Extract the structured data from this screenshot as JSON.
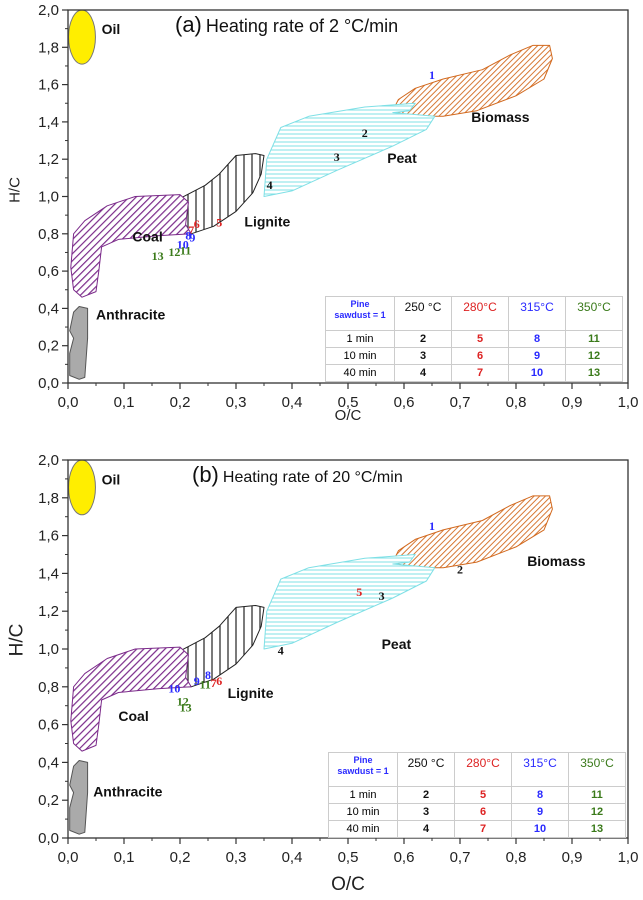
{
  "chart_data": [
    {
      "type": "scatter",
      "panel_label": "(a)",
      "title": "Heating rate of 2 °C/min",
      "xlabel": "O/C",
      "ylabel": "H/C",
      "xlim": [
        0.0,
        1.0
      ],
      "ylim": [
        0.0,
        2.0
      ],
      "xticks": [
        "0,0",
        "0,1",
        "0,2",
        "0,3",
        "0,4",
        "0,5",
        "0,6",
        "0,7",
        "0,8",
        "0,9",
        "1,0"
      ],
      "yticks": [
        "0,0",
        "0,2",
        "0,4",
        "0,6",
        "0,8",
        "1,0",
        "1,2",
        "1,4",
        "1,6",
        "1,8",
        "2,0"
      ],
      "grid": false,
      "regions": [
        {
          "name": "Oil",
          "label": "Oil",
          "color": "#ffee00"
        },
        {
          "name": "Biomass",
          "label": "Biomass",
          "color": "#d2691e"
        },
        {
          "name": "Peat",
          "label": "Peat",
          "color": "#7fe0e6"
        },
        {
          "name": "Lignite",
          "label": "Lignite",
          "color": "#222222"
        },
        {
          "name": "Coal",
          "label": "Coal",
          "color": "#7b2a8a"
        },
        {
          "name": "Anthracite",
          "label": "Anthracite",
          "color": "#aaaaaa"
        }
      ],
      "points": [
        {
          "label": "1",
          "x": 0.65,
          "y": 1.63,
          "color": "#2a2aff"
        },
        {
          "label": "2",
          "x": 0.53,
          "y": 1.32,
          "color": "#111111"
        },
        {
          "label": "3",
          "x": 0.48,
          "y": 1.19,
          "color": "#111111"
        },
        {
          "label": "4",
          "x": 0.36,
          "y": 1.04,
          "color": "#111111"
        },
        {
          "label": "5",
          "x": 0.27,
          "y": 0.84,
          "color": "#dd2222"
        },
        {
          "label": "6",
          "x": 0.23,
          "y": 0.83,
          "color": "#dd2222"
        },
        {
          "label": "7",
          "x": 0.22,
          "y": 0.8,
          "color": "#dd2222"
        },
        {
          "label": "8",
          "x": 0.215,
          "y": 0.77,
          "color": "#2a2aff"
        },
        {
          "label": "9",
          "x": 0.222,
          "y": 0.76,
          "color": "#2a2aff"
        },
        {
          "label": "10",
          "x": 0.205,
          "y": 0.72,
          "color": "#2a2aff"
        },
        {
          "label": "11",
          "x": 0.21,
          "y": 0.69,
          "color": "#3a7a1a"
        },
        {
          "label": "12",
          "x": 0.19,
          "y": 0.68,
          "color": "#3a7a1a"
        },
        {
          "label": "13",
          "x": 0.16,
          "y": 0.66,
          "color": "#3a7a1a"
        }
      ],
      "legend_table": {
        "corner": [
          "Pine",
          "sawdust = 1"
        ],
        "columns": [
          {
            "label": "250 °C",
            "color": "#111111"
          },
          {
            "label": "280°C",
            "color": "#dd2222"
          },
          {
            "label": "315°C",
            "color": "#2a2aff"
          },
          {
            "label": "350°C",
            "color": "#3a7a1a"
          }
        ],
        "rows": [
          {
            "label": "1 min",
            "values": [
              "2",
              "5",
              "8",
              "11"
            ]
          },
          {
            "label": "10 min",
            "values": [
              "3",
              "6",
              "9",
              "12"
            ]
          },
          {
            "label": "40 min",
            "values": [
              "4",
              "7",
              "10",
              "13"
            ]
          }
        ],
        "placement": "bottom-right"
      }
    },
    {
      "type": "scatter",
      "panel_label": "(b)",
      "title": "Heating rate of 20 °C/min",
      "xlabel": "O/C",
      "ylabel": "H/C",
      "xlim": [
        0.0,
        1.0
      ],
      "ylim": [
        0.0,
        2.0
      ],
      "xticks": [
        "0,0",
        "0,1",
        "0,2",
        "0,3",
        "0,4",
        "0,5",
        "0,6",
        "0,7",
        "0,8",
        "0,9",
        "1,0"
      ],
      "yticks": [
        "0,0",
        "0,2",
        "0,4",
        "0,6",
        "0,8",
        "1,0",
        "1,2",
        "1,4",
        "1,6",
        "1,8",
        "2,0"
      ],
      "grid": false,
      "regions": [
        {
          "name": "Oil",
          "label": "Oil",
          "color": "#ffee00"
        },
        {
          "name": "Biomass",
          "label": "Biomass",
          "color": "#d2691e"
        },
        {
          "name": "Peat",
          "label": "Peat",
          "color": "#7fe0e6"
        },
        {
          "name": "Lignite",
          "label": "Lignite",
          "color": "#222222"
        },
        {
          "name": "Coal",
          "label": "Coal",
          "color": "#7b2a8a"
        },
        {
          "name": "Anthracite",
          "label": "Anthracite",
          "color": "#aaaaaa"
        }
      ],
      "points": [
        {
          "label": "1",
          "x": 0.65,
          "y": 1.63,
          "color": "#2a2aff"
        },
        {
          "label": "2",
          "x": 0.7,
          "y": 1.4,
          "color": "#111111"
        },
        {
          "label": "3",
          "x": 0.56,
          "y": 1.26,
          "color": "#111111"
        },
        {
          "label": "4",
          "x": 0.38,
          "y": 0.97,
          "color": "#111111"
        },
        {
          "label": "5",
          "x": 0.52,
          "y": 1.28,
          "color": "#dd2222"
        },
        {
          "label": "6",
          "x": 0.27,
          "y": 0.81,
          "color": "#dd2222"
        },
        {
          "label": "7",
          "x": 0.26,
          "y": 0.8,
          "color": "#dd2222"
        },
        {
          "label": "8",
          "x": 0.25,
          "y": 0.84,
          "color": "#2a2aff"
        },
        {
          "label": "9",
          "x": 0.23,
          "y": 0.81,
          "color": "#2a2aff"
        },
        {
          "label": "10",
          "x": 0.19,
          "y": 0.77,
          "color": "#2a2aff"
        },
        {
          "label": "11",
          "x": 0.245,
          "y": 0.79,
          "color": "#3a7a1a"
        },
        {
          "label": "12",
          "x": 0.205,
          "y": 0.7,
          "color": "#3a7a1a"
        },
        {
          "label": "13",
          "x": 0.21,
          "y": 0.67,
          "color": "#3a7a1a"
        }
      ],
      "legend_table": {
        "corner": [
          "Pine",
          "sawdust = 1"
        ],
        "columns": [
          {
            "label": "250 °C",
            "color": "#111111"
          },
          {
            "label": "280°C",
            "color": "#dd2222"
          },
          {
            "label": "315°C",
            "color": "#2a2aff"
          },
          {
            "label": "350°C",
            "color": "#3a7a1a"
          }
        ],
        "rows": [
          {
            "label": "1 min",
            "values": [
              "2",
              "5",
              "8",
              "11"
            ]
          },
          {
            "label": "10 min",
            "values": [
              "3",
              "6",
              "9",
              "12"
            ]
          },
          {
            "label": "40 min",
            "values": [
              "4",
              "7",
              "10",
              "13"
            ]
          }
        ],
        "placement": "bottom-right"
      }
    }
  ]
}
